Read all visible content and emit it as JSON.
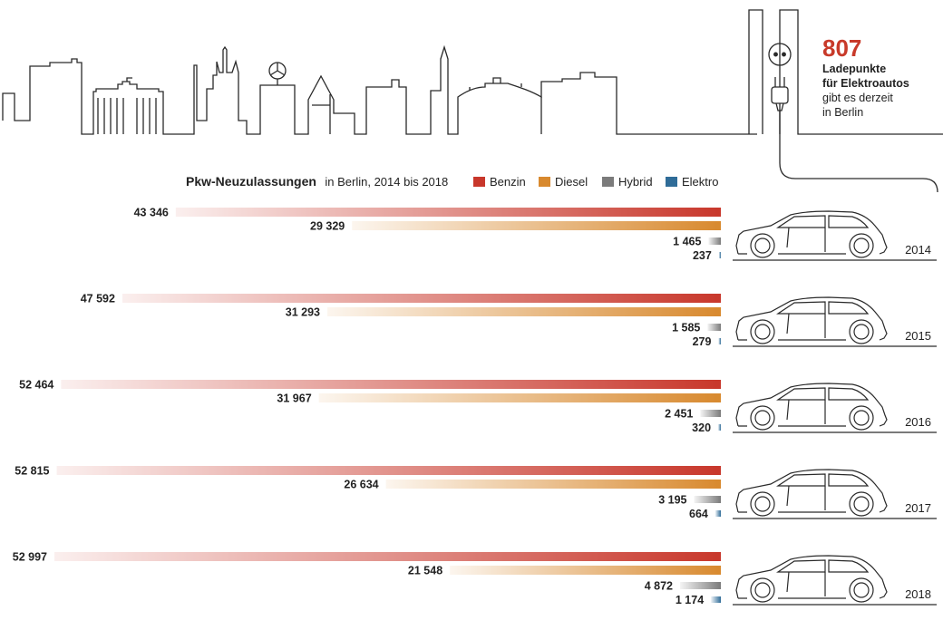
{
  "chart_data": {
    "type": "bar",
    "title": "Pkw-Neuzulassungen",
    "subtitle": "in Berlin, 2014 bis 2018",
    "categories": [
      "2014",
      "2015",
      "2016",
      "2017",
      "2018"
    ],
    "series": [
      {
        "name": "Benzin",
        "color": "#c8372b",
        "values": [
          43346,
          47592,
          52464,
          52815,
          52997
        ],
        "labels": [
          "43 346",
          "47 592",
          "52 464",
          "52 815",
          "52 997"
        ]
      },
      {
        "name": "Diesel",
        "color": "#d8892e",
        "values": [
          29329,
          31293,
          31967,
          26634,
          21548
        ],
        "labels": [
          "29 329",
          "31 293",
          "31 967",
          "26 634",
          "21 548"
        ]
      },
      {
        "name": "Hybrid",
        "color": "#7b7b7b",
        "values": [
          1465,
          1585,
          2451,
          3195,
          4872
        ],
        "labels": [
          "1 465",
          "1 585",
          "2 451",
          "3 195",
          "4 872"
        ]
      },
      {
        "name": "Elektro",
        "color": "#2f6c98",
        "values": [
          237,
          279,
          320,
          664,
          1174
        ],
        "labels": [
          "237",
          "279",
          "320",
          "664",
          "1 174"
        ]
      }
    ]
  },
  "infobox": {
    "number": "807",
    "line1": "Ladepunkte",
    "line2": "für Elektroautos",
    "line3": "gibt es derzeit",
    "line4": "in Berlin"
  },
  "icons": {
    "skyline": "berlin-skyline-icon",
    "socket": "power-socket-icon",
    "plug": "power-plug-icon",
    "car": "car-icon"
  }
}
